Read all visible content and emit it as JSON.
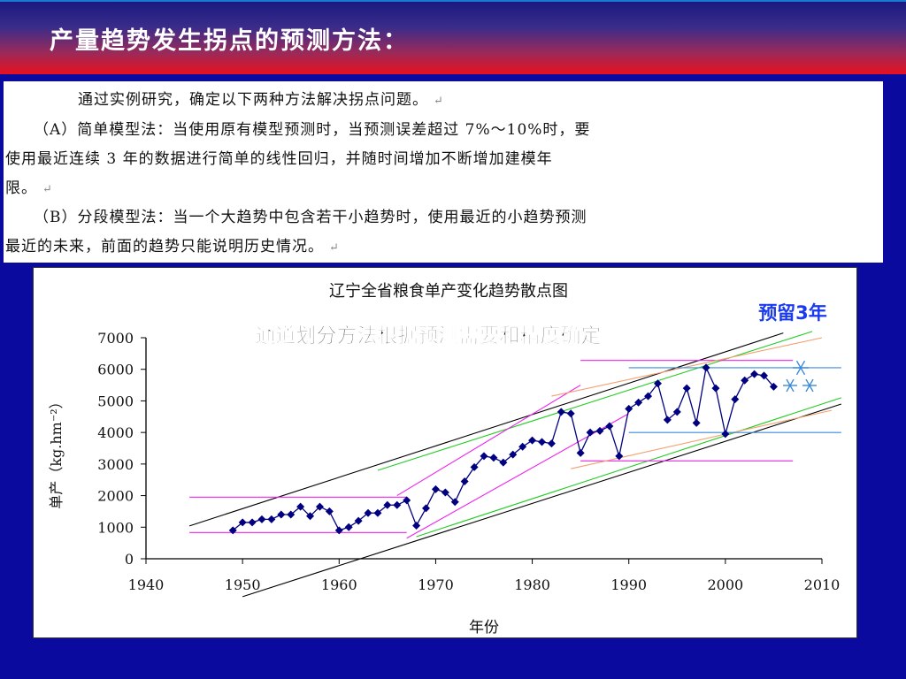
{
  "slide": {
    "title": "产量趋势发生拐点的预测方法："
  },
  "text": {
    "lines": [
      "通过实例研究，确定以下两种方法解决拐点问题。",
      "（A）简单模型法：当使用原有模型预测时，当预测误差超过 7%～10%时，要",
      "使用最近连续 3 年的数据进行简单的线性回归，并随时间增加不断增加建模年",
      "限。",
      "（B）分段模型法：当一个大趋势中包含若干小趋势时，使用最近的小趋势预测",
      "最近的未来，前面的趋势只能说明历史情况。"
    ],
    "return_mark": "↵"
  },
  "colors": {
    "background": "#0a0a9e",
    "series": "#000080",
    "outer_channel": "#000000",
    "green_channel": "#22cc22",
    "magenta_channel": "#ee22ee",
    "orange_channel": "#f4a070",
    "blue_channel": "#3a8ad8",
    "annotation_blue": "#1a3aee"
  },
  "chart_data": {
    "type": "scatter",
    "title": "辽宁全省粮食单产变化趋势散点图",
    "subtitle": "通道划分方法根据预测需要和精度确定",
    "annotation": "预留3年",
    "xlabel": "年份",
    "ylabel": "单产（kg.hm⁻²）",
    "xlim": [
      1940,
      2010
    ],
    "ylim": [
      0,
      7000
    ],
    "xticks": [
      "1940",
      "1950",
      "1960",
      "1970",
      "1980",
      "1990",
      "2000",
      "2010"
    ],
    "yticks": [
      "0",
      "1000",
      "2000",
      "3000",
      "4000",
      "5000",
      "6000",
      "7000"
    ],
    "grid": false,
    "series": [
      {
        "marker": "diamond",
        "x": [
          1949,
          1950,
          1951,
          1952,
          1953,
          1954,
          1955,
          1956,
          1957,
          1958,
          1959,
          1960,
          1961,
          1962,
          1963,
          1964,
          1965,
          1966,
          1967,
          1968,
          1969,
          1970,
          1971,
          1972,
          1973,
          1974,
          1975,
          1976,
          1977,
          1978,
          1979,
          1980,
          1981,
          1982,
          1983,
          1984,
          1985,
          1986,
          1987,
          1988,
          1989,
          1990,
          1991,
          1992,
          1993,
          1994,
          1995,
          1996,
          1997,
          1998,
          1999,
          2000,
          2001,
          2002,
          2003,
          2004,
          2005
        ],
        "y": [
          900,
          1150,
          1150,
          1250,
          1250,
          1400,
          1400,
          1650,
          1350,
          1650,
          1500,
          900,
          1000,
          1200,
          1450,
          1450,
          1700,
          1700,
          1850,
          1050,
          1600,
          2200,
          2100,
          1800,
          2450,
          2900,
          3250,
          3200,
          3050,
          3300,
          3550,
          3750,
          3700,
          3650,
          4650,
          4600,
          3350,
          4000,
          4050,
          4200,
          3250,
          4750,
          4950,
          5150,
          5550,
          4400,
          4650,
          5400,
          4300,
          6050,
          5400,
          3950,
          5050,
          5650,
          5850,
          5800,
          5450
        ]
      }
    ],
    "channels": [
      {
        "name": "outer-upper",
        "color": "black",
        "from": [
          1944.5,
          1040
        ],
        "to": [
          2006,
          7150
        ]
      },
      {
        "name": "outer-lower",
        "color": "black",
        "from": [
          1950,
          -1200
        ],
        "to": [
          2012,
          4900
        ]
      },
      {
        "name": "green-upper",
        "color": "green",
        "from": [
          1964,
          2800
        ],
        "to": [
          2009,
          7200
        ]
      },
      {
        "name": "green-lower",
        "color": "green",
        "from": [
          1968,
          700
        ],
        "to": [
          2012,
          5100
        ]
      },
      {
        "name": "magenta-upper-diag",
        "color": "magenta",
        "from": [
          1966,
          2000
        ],
        "to": [
          1985,
          5500
        ]
      },
      {
        "name": "magenta-lower-diag",
        "color": "magenta",
        "from": [
          1967,
          650
        ],
        "to": [
          1990,
          4600
        ]
      },
      {
        "name": "magenta-h-top-early",
        "color": "magenta",
        "from": [
          1944.5,
          1950
        ],
        "to": [
          1967,
          1950
        ]
      },
      {
        "name": "magenta-h-bottom-early",
        "color": "magenta",
        "from": [
          1944.5,
          830
        ],
        "to": [
          1967,
          830
        ]
      },
      {
        "name": "magenta-h-top-late",
        "color": "magenta",
        "from": [
          1985,
          6280
        ],
        "to": [
          2007,
          6280
        ]
      },
      {
        "name": "magenta-h-bottom-late",
        "color": "magenta",
        "from": [
          1985,
          3100
        ],
        "to": [
          2007,
          3100
        ]
      },
      {
        "name": "orange-upper",
        "color": "orange",
        "from": [
          1982,
          5150
        ],
        "to": [
          2010,
          7000
        ]
      },
      {
        "name": "orange-lower",
        "color": "orange",
        "from": [
          1984,
          2850
        ],
        "to": [
          2011,
          4700
        ]
      },
      {
        "name": "blue-h-top",
        "color": "blue",
        "from": [
          1990,
          6050
        ],
        "to": [
          2012,
          6050
        ]
      },
      {
        "name": "blue-h-bottom",
        "color": "blue",
        "from": [
          1990,
          4000
        ],
        "to": [
          2012,
          4000
        ]
      }
    ]
  }
}
